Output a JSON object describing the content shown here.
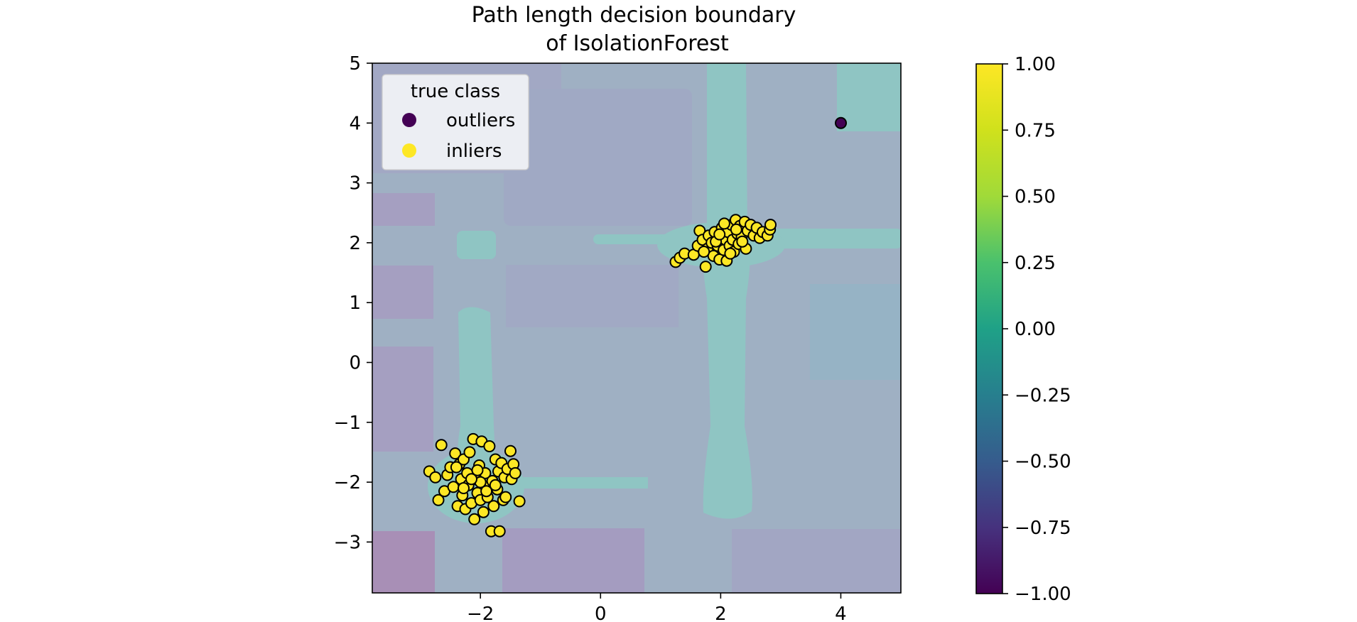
{
  "chart_data": {
    "type": "scatter",
    "title": [
      "Path length decision boundary",
      "of IsolationForest"
    ],
    "xlabel": "",
    "ylabel": "",
    "xlim": [
      -3.8,
      5.0
    ],
    "ylim": [
      -3.85,
      5.0
    ],
    "xticks": [
      -2,
      0,
      2,
      4
    ],
    "xtick_labels": [
      "−2",
      "0",
      "2",
      "4"
    ],
    "yticks": [
      -3,
      -2,
      -1,
      0,
      1,
      2,
      3,
      4,
      5
    ],
    "ytick_labels": [
      "−3",
      "−2",
      "−1",
      "0",
      "1",
      "2",
      "3",
      "4",
      "5"
    ],
    "grid": false,
    "legend": {
      "title": "true class",
      "placement": "upper-left",
      "entries": [
        {
          "label": "outliers",
          "color": "#440154"
        },
        {
          "label": "inliers",
          "color": "#fde725"
        }
      ]
    },
    "colorbar": {
      "colormap": "viridis",
      "range": [
        -1.0,
        1.0
      ],
      "ticks": [
        1.0,
        0.75,
        0.5,
        0.25,
        0.0,
        -0.25,
        -0.5,
        -0.75,
        -1.0
      ],
      "tick_labels": [
        "1.00",
        "0.75",
        "0.50",
        "0.25",
        "0.00",
        "−0.25",
        "−0.50",
        "−0.75",
        "−1.00"
      ]
    },
    "series": [
      {
        "name": "outliers",
        "color": "#440154",
        "points": [
          [
            4.0,
            4.0
          ]
        ]
      },
      {
        "name": "inliers",
        "color": "#fde725",
        "points": [
          [
            1.25,
            1.68
          ],
          [
            1.32,
            1.75
          ],
          [
            1.4,
            1.82
          ],
          [
            1.55,
            1.8
          ],
          [
            1.62,
            1.95
          ],
          [
            1.65,
            2.2
          ],
          [
            1.7,
            2.05
          ],
          [
            1.75,
            1.6
          ],
          [
            1.78,
            1.9
          ],
          [
            1.8,
            2.12
          ],
          [
            1.85,
            2.0
          ],
          [
            1.88,
            1.78
          ],
          [
            1.9,
            2.18
          ],
          [
            1.95,
            1.95
          ],
          [
            1.98,
            1.72
          ],
          [
            2.0,
            2.1
          ],
          [
            2.02,
            2.25
          ],
          [
            2.05,
            1.88
          ],
          [
            2.08,
            2.05
          ],
          [
            2.1,
            1.7
          ],
          [
            2.12,
            2.18
          ],
          [
            2.15,
            1.95
          ],
          [
            2.18,
            2.3
          ],
          [
            2.2,
            2.05
          ],
          [
            2.22,
            1.85
          ],
          [
            2.25,
            2.38
          ],
          [
            2.28,
            2.15
          ],
          [
            2.3,
            1.98
          ],
          [
            2.32,
            2.28
          ],
          [
            2.35,
            2.1
          ],
          [
            2.4,
            2.35
          ],
          [
            2.42,
            1.9
          ],
          [
            2.45,
            2.2
          ],
          [
            2.5,
            2.3
          ],
          [
            2.55,
            2.12
          ],
          [
            2.6,
            2.25
          ],
          [
            2.65,
            2.08
          ],
          [
            2.7,
            2.18
          ],
          [
            2.78,
            2.12
          ],
          [
            2.82,
            2.22
          ],
          [
            2.83,
            2.3
          ],
          [
            1.72,
            1.85
          ],
          [
            1.92,
            2.02
          ],
          [
            2.06,
            2.32
          ],
          [
            2.36,
            2.02
          ],
          [
            2.16,
            1.82
          ],
          [
            1.98,
            2.14
          ],
          [
            2.26,
            2.22
          ],
          [
            -2.85,
            -1.82
          ],
          [
            -2.75,
            -1.92
          ],
          [
            -2.7,
            -2.3
          ],
          [
            -2.65,
            -1.38
          ],
          [
            -2.6,
            -2.15
          ],
          [
            -2.55,
            -1.88
          ],
          [
            -2.5,
            -1.75
          ],
          [
            -2.45,
            -2.08
          ],
          [
            -2.42,
            -1.52
          ],
          [
            -2.38,
            -2.4
          ],
          [
            -2.35,
            -1.7
          ],
          [
            -2.32,
            -1.95
          ],
          [
            -2.3,
            -2.22
          ],
          [
            -2.28,
            -1.62
          ],
          [
            -2.25,
            -2.45
          ],
          [
            -2.22,
            -1.85
          ],
          [
            -2.2,
            -2.05
          ],
          [
            -2.18,
            -1.5
          ],
          [
            -2.15,
            -2.35
          ],
          [
            -2.12,
            -1.28
          ],
          [
            -2.1,
            -2.62
          ],
          [
            -2.08,
            -1.95
          ],
          [
            -2.05,
            -2.18
          ],
          [
            -2.02,
            -1.72
          ],
          [
            -2.0,
            -2.3
          ],
          [
            -1.98,
            -1.32
          ],
          [
            -1.95,
            -2.5
          ],
          [
            -1.92,
            -1.85
          ],
          [
            -1.9,
            -2.08
          ],
          [
            -1.88,
            -2.25
          ],
          [
            -1.85,
            -1.4
          ],
          [
            -1.82,
            -2.82
          ],
          [
            -1.8,
            -1.98
          ],
          [
            -1.78,
            -2.4
          ],
          [
            -1.75,
            -1.62
          ],
          [
            -1.72,
            -2.12
          ],
          [
            -1.7,
            -1.82
          ],
          [
            -1.68,
            -2.82
          ],
          [
            -1.65,
            -1.68
          ],
          [
            -1.62,
            -2.3
          ],
          [
            -1.6,
            -1.92
          ],
          [
            -1.58,
            -2.25
          ],
          [
            -1.55,
            -1.78
          ],
          [
            -1.5,
            -1.48
          ],
          [
            -1.48,
            -1.95
          ],
          [
            -1.45,
            -1.7
          ],
          [
            -1.42,
            -1.85
          ],
          [
            -1.35,
            -2.32
          ],
          [
            -2.4,
            -1.75
          ],
          [
            -2.0,
            -2.0
          ],
          [
            -1.9,
            -2.15
          ],
          [
            -2.15,
            -1.95
          ],
          [
            -2.05,
            -1.8
          ],
          [
            -1.75,
            -2.05
          ],
          [
            -2.28,
            -2.1
          ]
        ]
      }
    ]
  }
}
